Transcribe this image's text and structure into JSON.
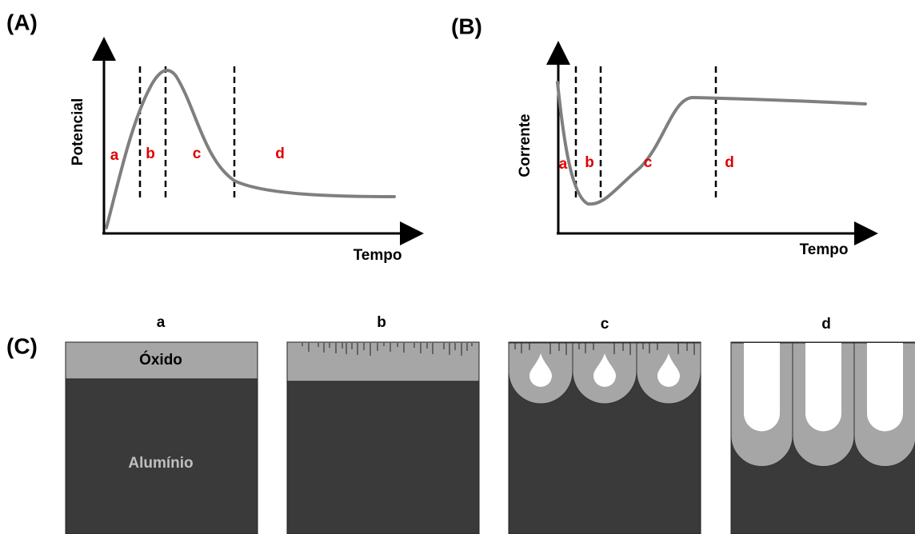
{
  "panels": [
    {
      "label": "(A)",
      "y_axis": "Potencial",
      "x_axis": "Tempo",
      "regions": [
        "a",
        "b",
        "c",
        "d"
      ]
    },
    {
      "label": "(B)",
      "y_axis": "Corrente",
      "x_axis": "Tempo",
      "regions": [
        "a",
        "b",
        "c",
        "d"
      ]
    }
  ],
  "panel_c": {
    "label": "(C)",
    "stages": [
      "a",
      "b",
      "c",
      "d"
    ],
    "oxide": "Óxido",
    "metal": "Alumínio"
  }
}
